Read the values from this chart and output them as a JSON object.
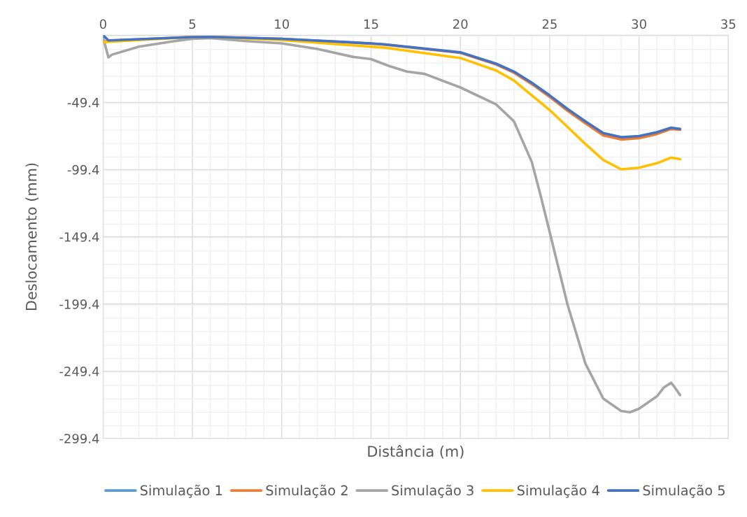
{
  "chart_data": {
    "type": "line",
    "xlabel": "Distância (m)",
    "ylabel": "Deslocamento (mm)",
    "xlim": [
      0,
      35
    ],
    "xticks": [
      0,
      5,
      10,
      15,
      20,
      25,
      30,
      35
    ],
    "ylim": [
      -299.4,
      0.6
    ],
    "yticks": [
      -299.4,
      -249.4,
      -199.4,
      -149.4,
      -99.4,
      -49.4,
      {
        "value": 0.6,
        "label": null
      }
    ],
    "grid": true,
    "legend": "bottom",
    "marker": "none",
    "line_style": "solid",
    "series": [
      {
        "name": "Simulação 1",
        "color": "#5b9bd5"
      },
      {
        "name": "Simulação 2",
        "color": "#ed7d31",
        "x": [
          0,
          0.3,
          5,
          6,
          10,
          15,
          15.8,
          20,
          22,
          23,
          24,
          25,
          26,
          27,
          28,
          29,
          30,
          31,
          31.8,
          32.3
        ],
        "values": [
          -4.3,
          -3.6,
          -0.8,
          -0.7,
          -2.2,
          -5.7,
          -6.5,
          -12.5,
          -21.2,
          -27.3,
          -35.8,
          -45.3,
          -55.6,
          -65.0,
          -74.0,
          -77.0,
          -76.0,
          -73.0,
          -69.2,
          -69.8
        ]
      },
      {
        "name": "Simulação 3",
        "color": "#a5a5a5",
        "x": [
          0,
          0.3,
          0.5,
          2,
          4,
          5,
          6,
          8,
          10,
          12,
          14,
          15,
          16,
          17,
          18,
          20,
          22,
          23,
          24,
          24.5,
          25,
          26,
          27,
          28,
          29,
          29.5,
          30,
          31,
          31.4,
          31.8,
          32.0,
          32.3
        ],
        "values": [
          -1.3,
          -15.9,
          -13.9,
          -8.0,
          -3.8,
          -2.1,
          -1.6,
          -3.8,
          -5.5,
          -9.7,
          -15.6,
          -17.2,
          -22.3,
          -26.5,
          -28.2,
          -38.3,
          -50.9,
          -63.5,
          -93.8,
          -119.1,
          -145.9,
          -199.9,
          -243.7,
          -269.8,
          -279.0,
          -279.9,
          -277.3,
          -268.1,
          -261.4,
          -258.0,
          -261.4,
          -267.2
        ]
      },
      {
        "name": "Simulação 4",
        "color": "#ffc000",
        "x": [
          0,
          5,
          6,
          10,
          15,
          15.8,
          20,
          22,
          23,
          24,
          25,
          26,
          27,
          28,
          29,
          30,
          31,
          31.8,
          32.3
        ],
        "values": [
          -4.6,
          -0.8,
          -0.7,
          -3.0,
          -8.0,
          -8.8,
          -16.4,
          -25.7,
          -33.2,
          -44.2,
          -55.1,
          -67.7,
          -80.4,
          -92.2,
          -99.2,
          -98.0,
          -94.7,
          -90.5,
          -91.7
        ]
      },
      {
        "name": "Simulação 5",
        "color": "#4472c4",
        "x": [
          0,
          0.3,
          5,
          6,
          10,
          15,
          15.8,
          20,
          22,
          23,
          24,
          25,
          26,
          27,
          28,
          29,
          30,
          31,
          31.8,
          32.3
        ],
        "values": [
          0.6,
          -3.3,
          -0.8,
          -0.7,
          -2.1,
          -5.5,
          -6.3,
          -12.2,
          -20.6,
          -26.5,
          -34.8,
          -44.2,
          -54.3,
          -63.5,
          -72.3,
          -75.3,
          -74.5,
          -71.6,
          -68.2,
          -69.1
        ]
      }
    ]
  }
}
